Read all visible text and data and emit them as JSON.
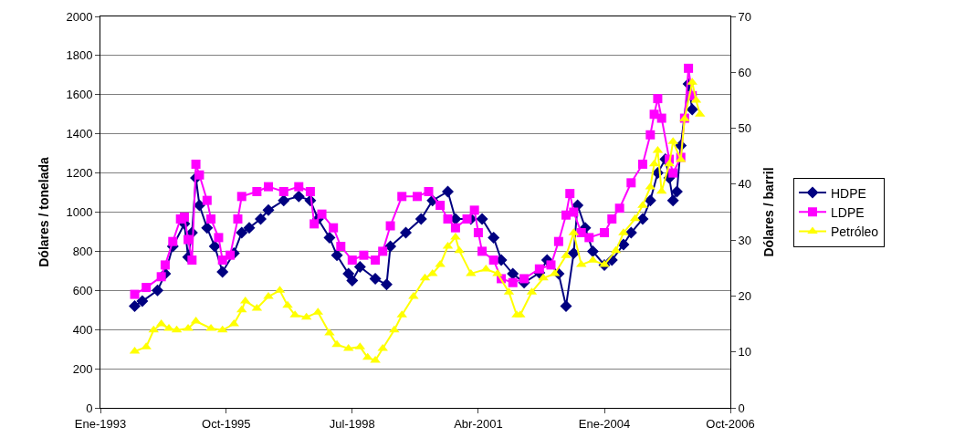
{
  "chart_data": {
    "type": "line",
    "ylabel": "Dólares / tonelada",
    "y2label": "Dólares / barril",
    "xlim": [
      "1993-01",
      "2006-10"
    ],
    "xticks": [
      {
        "value": "1993-01",
        "label": "Ene-1993"
      },
      {
        "value": "1995-10",
        "label": "Oct-1995"
      },
      {
        "value": "1998-07",
        "label": "Jul-1998"
      },
      {
        "value": "2001-04",
        "label": "Abr-2001"
      },
      {
        "value": "2004-01",
        "label": "Ene-2004"
      },
      {
        "value": "2006-10",
        "label": "Oct-2006"
      }
    ],
    "ylim": [
      0,
      2000
    ],
    "yticks": [
      0,
      200,
      400,
      600,
      800,
      1000,
      1200,
      1400,
      1600,
      1800,
      2000
    ],
    "y2lim": [
      0,
      70
    ],
    "y2ticks": [
      0,
      10,
      20,
      30,
      40,
      50,
      60,
      70
    ],
    "grid": "y",
    "legend": "right",
    "series": [
      {
        "name": "HDPE",
        "color": "#000080",
        "marker": "diamond",
        "x": [
          "1993-10",
          "1993-12",
          "1994-04",
          "1994-06",
          "1994-08",
          "1994-11",
          "1994-12",
          "1995-01",
          "1995-02",
          "1995-03",
          "1995-05",
          "1995-07",
          "1995-09",
          "1995-12",
          "1996-02",
          "1996-04",
          "1996-07",
          "1996-09",
          "1997-01",
          "1997-05",
          "1997-08",
          "1997-10",
          "1998-01",
          "1998-03",
          "1998-06",
          "1998-07",
          "1998-09",
          "1999-01",
          "1999-04",
          "1999-05",
          "1999-09",
          "2000-01",
          "2000-04",
          "2000-08",
          "2000-10",
          "2001-02",
          "2001-05",
          "2001-08",
          "2001-10",
          "2002-01",
          "2002-04",
          "2002-08",
          "2002-10",
          "2003-01",
          "2003-03",
          "2003-05",
          "2003-06",
          "2003-08",
          "2003-10",
          "2004-01",
          "2004-03",
          "2004-06",
          "2004-08",
          "2004-11",
          "2005-01",
          "2005-03",
          "2005-05",
          "2005-06",
          "2005-07",
          "2005-08",
          "2005-09",
          "2005-11",
          "2005-12"
        ],
        "values": [
          520,
          545,
          600,
          685,
          825,
          940,
          770,
          895,
          1175,
          1035,
          920,
          825,
          695,
          790,
          895,
          920,
          965,
          1010,
          1060,
          1080,
          1060,
          965,
          870,
          780,
          685,
          650,
          720,
          660,
          630,
          825,
          895,
          965,
          1060,
          1105,
          965,
          965,
          965,
          870,
          755,
          685,
          640,
          690,
          755,
          685,
          520,
          790,
          1035,
          920,
          800,
          730,
          755,
          835,
          895,
          965,
          1060,
          1200,
          1270,
          1175,
          1060,
          1105,
          1340,
          1655,
          1525
        ]
      },
      {
        "name": "LDPE",
        "color": "#ff00ff",
        "marker": "square",
        "x": [
          "1993-10",
          "1994-01",
          "1994-05",
          "1994-06",
          "1994-08",
          "1994-10",
          "1994-11",
          "1994-12",
          "1995-01",
          "1995-02",
          "1995-03",
          "1995-05",
          "1995-06",
          "1995-08",
          "1995-09",
          "1995-11",
          "1996-01",
          "1996-02",
          "1996-06",
          "1996-09",
          "1997-01",
          "1997-05",
          "1997-08",
          "1997-09",
          "1997-11",
          "1998-02",
          "1998-04",
          "1998-07",
          "1998-10",
          "1999-01",
          "1999-03",
          "1999-05",
          "1999-08",
          "1999-12",
          "2000-03",
          "2000-06",
          "2000-08",
          "2000-10",
          "2001-01",
          "2001-03",
          "2001-04",
          "2001-05",
          "2001-08",
          "2001-10",
          "2002-01",
          "2002-04",
          "2002-08",
          "2002-11",
          "2003-01",
          "2003-03",
          "2003-04",
          "2003-05",
          "2003-07",
          "2003-09",
          "2004-01",
          "2004-03",
          "2004-05",
          "2004-08",
          "2004-11",
          "2005-01",
          "2005-02",
          "2005-03",
          "2005-04",
          "2005-06",
          "2005-07",
          "2005-09",
          "2005-10",
          "2005-11",
          "2005-12"
        ],
        "values": [
          580,
          615,
          670,
          730,
          850,
          965,
          975,
          860,
          755,
          1245,
          1190,
          1060,
          965,
          870,
          755,
          780,
          965,
          1080,
          1105,
          1130,
          1105,
          1130,
          1105,
          940,
          990,
          920,
          825,
          755,
          780,
          755,
          800,
          930,
          1080,
          1080,
          1105,
          1035,
          965,
          920,
          965,
          1010,
          895,
          800,
          755,
          660,
          640,
          660,
          710,
          730,
          850,
          985,
          1095,
          1000,
          895,
          870,
          895,
          965,
          1020,
          1150,
          1245,
          1395,
          1500,
          1580,
          1480,
          1270,
          1200,
          1280,
          1480,
          1735,
          1595
        ]
      },
      {
        "name": "Petróleo",
        "color": "#ffff00",
        "marker": "triangle",
        "axis": "y2",
        "x": [
          "1993-10",
          "1994-01",
          "1994-03",
          "1994-05",
          "1994-07",
          "1994-09",
          "1994-12",
          "1995-02",
          "1995-06",
          "1995-09",
          "1995-12",
          "1996-02",
          "1996-03",
          "1996-06",
          "1996-09",
          "1996-12",
          "1997-02",
          "1997-04",
          "1997-07",
          "1997-10",
          "1998-01",
          "1998-03",
          "1998-06",
          "1998-09",
          "1998-11",
          "1999-01",
          "1999-03",
          "1999-06",
          "1999-08",
          "1999-11",
          "2000-02",
          "2000-04",
          "2000-06",
          "2000-08",
          "2000-10",
          "2000-11",
          "2001-02",
          "2001-06",
          "2001-09",
          "2001-12",
          "2002-02",
          "2002-03",
          "2002-06",
          "2002-09",
          "2002-12",
          "2003-03",
          "2003-05",
          "2003-07",
          "2003-10",
          "2004-01",
          "2004-04",
          "2004-06",
          "2004-09",
          "2004-11",
          "2005-01",
          "2005-02",
          "2005-03",
          "2005-04",
          "2005-06",
          "2005-07",
          "2005-09",
          "2005-10",
          "2005-12",
          "2006-01",
          "2006-02"
        ],
        "values": [
          10.1,
          10.9,
          13.9,
          15.0,
          14.2,
          13.9,
          14.2,
          15.5,
          14.2,
          13.9,
          15.0,
          17.5,
          19.1,
          17.8,
          19.9,
          21.0,
          18.3,
          16.6,
          16.2,
          17.1,
          13.4,
          11.3,
          10.6,
          10.9,
          9.0,
          8.5,
          10.6,
          13.9,
          16.6,
          19.9,
          23.2,
          24.0,
          25.6,
          28.9,
          30.5,
          28.1,
          24.0,
          24.8,
          24.0,
          20.7,
          16.6,
          16.6,
          20.7,
          23.2,
          24.0,
          27.2,
          31.3,
          25.6,
          26.4,
          25.6,
          28.1,
          31.3,
          33.8,
          36.2,
          39.5,
          43.6,
          46.0,
          38.7,
          43.6,
          47.6,
          44.4,
          51.7,
          58.2,
          55.0,
          52.5
        ]
      }
    ]
  }
}
